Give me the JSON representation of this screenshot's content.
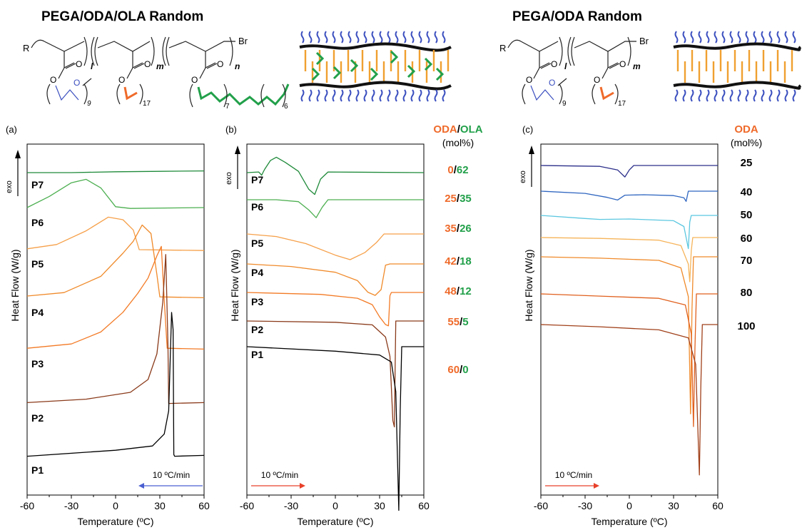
{
  "headers": {
    "left": "PEGA/ODA/OLA Random",
    "right": "PEGA/ODA Random"
  },
  "schematic": {
    "left_end": "R",
    "right_end": "Br",
    "subscripts": [
      "l",
      "m",
      "n"
    ],
    "repeat_labels": [
      "9",
      "17",
      "7",
      "6"
    ],
    "ester_o": "O",
    "ether_o": "O"
  },
  "colors": {
    "oda": "#ef6a2a",
    "ola": "#22a04a",
    "peg": "#3b4fbf",
    "backbone": "#111111",
    "pendant": "#f0a030",
    "cooling_arrow": "#4a5fd0",
    "heating_arrow": "#e8402a"
  },
  "chart_data": [
    {
      "panel": "(a)",
      "type": "line",
      "xlabel": "Temperature (ºC)",
      "ylabel": "Heat Flow (W/g)",
      "exo_label": "exo",
      "xlim": [
        -60,
        60
      ],
      "xticks": [
        -60,
        -30,
        0,
        30,
        60
      ],
      "rate_label": "10 ºC/min",
      "rate_direction": "cooling",
      "series": [
        {
          "name": "P7",
          "color": "#1f8a3a",
          "points": [
            [
              -60,
              0.5
            ],
            [
              -30,
              0.5
            ],
            [
              0,
              0.6
            ],
            [
              30,
              0.65
            ],
            [
              60,
              0.7
            ]
          ]
        },
        {
          "name": "P6",
          "color": "#4caf50",
          "points": [
            [
              -60,
              0.5
            ],
            [
              -45,
              1.8
            ],
            [
              -30,
              3.4
            ],
            [
              -20,
              3.8
            ],
            [
              -10,
              2.8
            ],
            [
              0,
              0.6
            ],
            [
              10,
              0.4
            ],
            [
              60,
              0.5
            ]
          ]
        },
        {
          "name": "P5",
          "color": "#f6a04a",
          "points": [
            [
              -60,
              0.6
            ],
            [
              -40,
              1.1
            ],
            [
              -20,
              2.7
            ],
            [
              -5,
              4.3
            ],
            [
              5,
              4.0
            ],
            [
              12,
              2.8
            ],
            [
              16,
              0.5
            ],
            [
              60,
              0.4
            ]
          ]
        },
        {
          "name": "P4",
          "color": "#f08a2a",
          "points": [
            [
              -60,
              0.5
            ],
            [
              -35,
              0.9
            ],
            [
              -10,
              2.8
            ],
            [
              5,
              5.5
            ],
            [
              12,
              6.9
            ],
            [
              18,
              8.8
            ],
            [
              24,
              7.8
            ],
            [
              28,
              3.0
            ],
            [
              30,
              0.4
            ],
            [
              60,
              0.3
            ]
          ]
        },
        {
          "name": "P3",
          "color": "#f37a25",
          "points": [
            [
              -60,
              0.4
            ],
            [
              -30,
              0.9
            ],
            [
              -10,
              2.3
            ],
            [
              5,
              4.6
            ],
            [
              15,
              6.8
            ],
            [
              22,
              8.6
            ],
            [
              28,
              11.2
            ],
            [
              31,
              12.3
            ],
            [
              33,
              6.0
            ],
            [
              35,
              0.4
            ],
            [
              60,
              0.3
            ]
          ]
        },
        {
          "name": "P2",
          "color": "#8a3a1a",
          "points": [
            [
              -60,
              0.3
            ],
            [
              -20,
              0.7
            ],
            [
              10,
              1.5
            ],
            [
              22,
              3.0
            ],
            [
              28,
              6.0
            ],
            [
              32,
              12.0
            ],
            [
              34,
              17.6
            ],
            [
              35.5,
              7.0
            ],
            [
              36,
              0.2
            ],
            [
              60,
              0.3
            ]
          ]
        },
        {
          "name": "P1",
          "color": "#000000",
          "points": [
            [
              -60,
              0.2
            ],
            [
              0,
              0.9
            ],
            [
              25,
              1.4
            ],
            [
              33,
              2.8
            ],
            [
              36,
              5.5
            ],
            [
              38,
              17.0
            ],
            [
              39,
              15.0
            ],
            [
              39.5,
              0.4
            ],
            [
              40,
              0.2
            ],
            [
              60,
              0.3
            ]
          ]
        }
      ]
    },
    {
      "panel": "(b)",
      "type": "line",
      "xlabel": "Temperature (ºC)",
      "ylabel": "Heat Flow (W/g)",
      "exo_label": "exo",
      "xlim": [
        -60,
        60
      ],
      "xticks": [
        -60,
        -30,
        0,
        30,
        60
      ],
      "rate_label": "10 ºC/min",
      "rate_direction": "heating",
      "legend_header": {
        "oda": "ODA",
        "slash": "/",
        "ola": "OLA",
        "unit": "(mol%)"
      },
      "series": [
        {
          "name": "P7",
          "oda": "0",
          "ola": "62",
          "color": "#1f8a3a",
          "points": [
            [
              -60,
              0
            ],
            [
              -52,
              0.1
            ],
            [
              -50,
              -0.4
            ],
            [
              -48,
              0.5
            ],
            [
              -44,
              1.9
            ],
            [
              -40,
              2.4
            ],
            [
              -34,
              1.6
            ],
            [
              -25,
              0.2
            ],
            [
              -18,
              -2.6
            ],
            [
              -14,
              -3.4
            ],
            [
              -10,
              -1.0
            ],
            [
              -5,
              0.1
            ],
            [
              60,
              0
            ]
          ]
        },
        {
          "name": "P6",
          "oda": "25",
          "ola": "35",
          "color": "#4caf50",
          "points": [
            [
              -60,
              0
            ],
            [
              -40,
              0
            ],
            [
              -25,
              -0.3
            ],
            [
              -18,
              -1.6
            ],
            [
              -13,
              -2.8
            ],
            [
              -9,
              -1.2
            ],
            [
              -5,
              0
            ],
            [
              60,
              0
            ]
          ]
        },
        {
          "name": "P5",
          "oda": "35",
          "ola": "26",
          "color": "#f6a04a",
          "points": [
            [
              -60,
              0
            ],
            [
              -40,
              -0.4
            ],
            [
              -20,
              -1.5
            ],
            [
              0,
              -3.3
            ],
            [
              10,
              -4.0
            ],
            [
              20,
              -2.9
            ],
            [
              28,
              -1.3
            ],
            [
              33,
              0
            ],
            [
              60,
              0
            ]
          ]
        },
        {
          "name": "P4",
          "oda": "42",
          "ola": "18",
          "color": "#f08a2a",
          "points": [
            [
              -60,
              0
            ],
            [
              -30,
              -0.4
            ],
            [
              0,
              -1.3
            ],
            [
              15,
              -2.6
            ],
            [
              22,
              -4.4
            ],
            [
              27,
              -4.9
            ],
            [
              31,
              -4.0
            ],
            [
              34,
              -0.2
            ],
            [
              37,
              0
            ],
            [
              60,
              0
            ]
          ]
        },
        {
          "name": "P3",
          "oda": "48",
          "ola": "12",
          "color": "#f37a25",
          "points": [
            [
              -60,
              0
            ],
            [
              -10,
              -0.3
            ],
            [
              15,
              -0.9
            ],
            [
              25,
              -1.9
            ],
            [
              30,
              -3.8
            ],
            [
              34,
              -5.0
            ],
            [
              36,
              -5.2
            ],
            [
              37,
              -0.5
            ],
            [
              38,
              0
            ],
            [
              60,
              0
            ]
          ]
        },
        {
          "name": "P2",
          "oda": "55",
          "ola": "5",
          "color": "#8a3a1a",
          "points": [
            [
              -60,
              0
            ],
            [
              0,
              -0.2
            ],
            [
              25,
              -0.6
            ],
            [
              34,
              -2.5
            ],
            [
              37,
              -5.5
            ],
            [
              39,
              -15.5
            ],
            [
              40,
              -16.5
            ],
            [
              40.5,
              -8.0
            ],
            [
              41,
              0
            ],
            [
              60,
              0
            ]
          ]
        },
        {
          "name": "P1",
          "oda": "60",
          "ola": "0",
          "color": "#000000",
          "points": [
            [
              -60,
              0
            ],
            [
              0,
              -0.7
            ],
            [
              30,
              -1.3
            ],
            [
              38,
              -2.4
            ],
            [
              41,
              -7.0
            ],
            [
              43,
              -25.5
            ],
            [
              44,
              -10.0
            ],
            [
              45,
              0
            ],
            [
              60,
              0
            ]
          ]
        }
      ]
    },
    {
      "panel": "(c)",
      "type": "line",
      "xlabel": "Temperature (ºC)",
      "ylabel": "Heat Flow (W/g)",
      "exo_label": "exo",
      "xlim": [
        -60,
        60
      ],
      "xticks": [
        -60,
        -30,
        0,
        30,
        60
      ],
      "rate_label": "10 ºC/min",
      "rate_direction": "heating",
      "legend_header": {
        "oda": "ODA",
        "unit": "(mol%)"
      },
      "series": [
        {
          "name": "25",
          "color": "#2c2f8a",
          "points": [
            [
              -60,
              0
            ],
            [
              -20,
              -0.2
            ],
            [
              -8,
              -1.0
            ],
            [
              -3,
              -2.6
            ],
            [
              0,
              -1.0
            ],
            [
              3,
              0
            ],
            [
              60,
              0
            ]
          ]
        },
        {
          "name": "40",
          "color": "#2f66c0",
          "points": [
            [
              -60,
              0
            ],
            [
              -30,
              -0.5
            ],
            [
              -15,
              -1.4
            ],
            [
              -8,
              -2.0
            ],
            [
              -3,
              -0.9
            ],
            [
              10,
              -0.8
            ],
            [
              30,
              -1.0
            ],
            [
              37,
              -1.5
            ],
            [
              38.5,
              -2.3
            ],
            [
              40,
              0
            ],
            [
              60,
              0
            ]
          ]
        },
        {
          "name": "50",
          "color": "#5bc7e0",
          "points": [
            [
              -60,
              0
            ],
            [
              -30,
              -0.7
            ],
            [
              -20,
              -0.9
            ],
            [
              0,
              -0.8
            ],
            [
              30,
              -1.2
            ],
            [
              37,
              -2.5
            ],
            [
              40,
              -7.5
            ],
            [
              41,
              -1.5
            ],
            [
              42,
              0
            ],
            [
              60,
              0
            ]
          ]
        },
        {
          "name": "60",
          "color": "#f6b45a",
          "points": [
            [
              -60,
              0
            ],
            [
              -20,
              -0.2
            ],
            [
              20,
              -0.6
            ],
            [
              35,
              -1.8
            ],
            [
              40,
              -6.0
            ],
            [
              41,
              -10.0
            ],
            [
              42,
              -3.0
            ],
            [
              43,
              0
            ],
            [
              60,
              0
            ]
          ]
        },
        {
          "name": "70",
          "color": "#f08a2a",
          "points": [
            [
              -60,
              0
            ],
            [
              -20,
              -0.3
            ],
            [
              20,
              -0.8
            ],
            [
              35,
              -2.5
            ],
            [
              40,
              -9.0
            ],
            [
              41.5,
              -35.5
            ],
            [
              42.5,
              -12.0
            ],
            [
              43.5,
              0
            ],
            [
              60,
              0
            ]
          ]
        },
        {
          "name": "80",
          "color": "#e0601e",
          "points": [
            [
              -60,
              0
            ],
            [
              -20,
              -0.5
            ],
            [
              20,
              -1.0
            ],
            [
              38,
              -2.5
            ],
            [
              42,
              -9.0
            ],
            [
              43.5,
              -30.0
            ],
            [
              44.5,
              -12.0
            ],
            [
              45.5,
              0
            ],
            [
              60,
              0
            ]
          ]
        },
        {
          "name": "100",
          "color": "#a0401a",
          "points": [
            [
              -60,
              0
            ],
            [
              -20,
              -0.5
            ],
            [
              20,
              -1.2
            ],
            [
              40,
              -3.0
            ],
            [
              45,
              -9.0
            ],
            [
              47.5,
              -34.0
            ],
            [
              48.5,
              -14.0
            ],
            [
              49.5,
              0
            ],
            [
              60,
              0
            ]
          ]
        }
      ]
    }
  ]
}
